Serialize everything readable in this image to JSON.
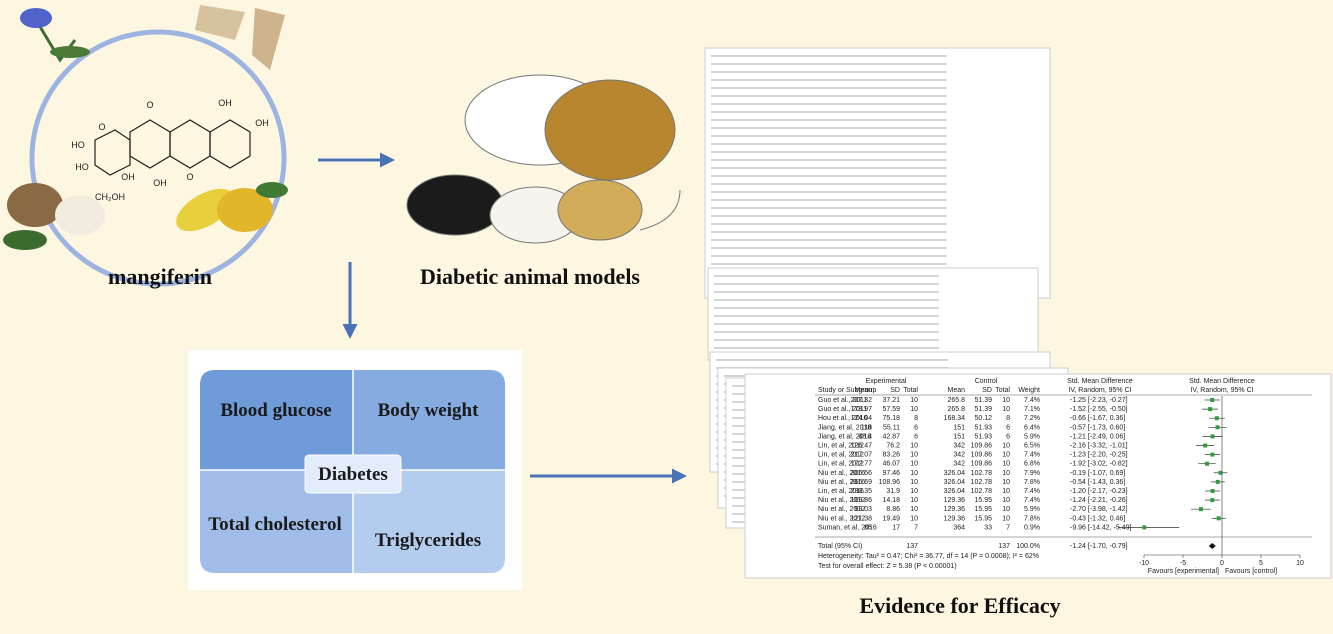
{
  "labels": {
    "compound": "mangiferin",
    "animals": "Diabetic animal models",
    "evidence": "Evidence for Efficacy"
  },
  "molecule": [
    "O",
    "HO",
    "HO",
    "OH",
    "CH₂OH",
    "OH",
    "O",
    "OH",
    "OH",
    "O"
  ],
  "diabetes": {
    "center": "Diabetes",
    "top_left": "Blood glucose",
    "top_right": "Body weight",
    "bottom_left": "Total cholesterol",
    "bottom_right": "Triglycerides"
  },
  "forest": {
    "header": {
      "experimental": "Experimental",
      "control": "Control",
      "smd": "Std. Mean Difference",
      "smd_plot": "Std. Mean Difference"
    },
    "columns": [
      "Study or Subgroup",
      "Mean",
      "SD",
      "Total",
      "Mean",
      "SD",
      "Total",
      "Weight",
      "IV, Random, 95% CI",
      "IV, Random, 95% CI"
    ],
    "rows": [
      {
        "study": "Guo et al., 2011",
        "exp_mean": 207.32,
        "exp_sd": 37.21,
        "exp_total": 10,
        "ctl_mean": 265.8,
        "ctl_sd": 51.39,
        "ctl_total": 10,
        "weight": "7.4%",
        "ci": "-1.25 [-2.23, -0.27]",
        "smd": -1.25,
        "lo": -2.23,
        "hi": -0.27
      },
      {
        "study": "Guo et al., 2011",
        "exp_mean": 178.97,
        "exp_sd": 57.59,
        "exp_total": 10,
        "ctl_mean": 265.8,
        "ctl_sd": 51.39,
        "ctl_total": 10,
        "weight": "7.1%",
        "ci": "-1.52 [-2.55, -0.50]",
        "smd": -1.52,
        "lo": -2.55,
        "hi": -0.5
      },
      {
        "study": "Hou et al., 2016",
        "exp_mean": 124.04,
        "exp_sd": 75.18,
        "exp_total": 8,
        "ctl_mean": 168.34,
        "ctl_sd": 50.12,
        "ctl_total": 8,
        "weight": "7.2%",
        "ci": "-0.66 [-1.67, 0.36]",
        "smd": -0.66,
        "lo": -1.67,
        "hi": 0.36
      },
      {
        "study": "Jiang, et al, 2018",
        "exp_mean": 118,
        "exp_sd": 55.11,
        "exp_total": 6,
        "ctl_mean": 151,
        "ctl_sd": 51.93,
        "ctl_total": 6,
        "weight": "6.4%",
        "ci": "-0.57 [-1.73, 0.60]",
        "smd": -0.57,
        "lo": -1.73,
        "hi": 0.6
      },
      {
        "study": "Jiang, et al, 2018",
        "exp_mean": 88.4,
        "exp_sd": 42.87,
        "exp_total": 6,
        "ctl_mean": 151,
        "ctl_sd": 51.93,
        "ctl_total": 6,
        "weight": "5.9%",
        "ci": "-1.21 [-2.49, 0.06]",
        "smd": -1.21,
        "lo": -2.49,
        "hi": 0.06
      },
      {
        "study": "Lin, et al, 2012",
        "exp_mean": 126.47,
        "exp_sd": 76.2,
        "exp_total": 10,
        "ctl_mean": 342,
        "ctl_sd": 109.86,
        "ctl_total": 10,
        "weight": "6.5%",
        "ci": "-2.16 [-3.32, -1.01]",
        "smd": -2.16,
        "lo": -3.32,
        "hi": -1.01
      },
      {
        "study": "Lin, et al, 2012",
        "exp_mean": 217.07,
        "exp_sd": 83.26,
        "exp_total": 10,
        "ctl_mean": 342,
        "ctl_sd": 109.86,
        "ctl_total": 10,
        "weight": "7.4%",
        "ci": "-1.23 [-2.20, -0.25]",
        "smd": -1.23,
        "lo": -2.2,
        "hi": -0.25
      },
      {
        "study": "Lin, et al, 2012",
        "exp_mean": 172.77,
        "exp_sd": 46.07,
        "exp_total": 10,
        "ctl_mean": 342,
        "ctl_sd": 109.86,
        "ctl_total": 10,
        "weight": "6.8%",
        "ci": "-1.92 [-3.02, -0.82]",
        "smd": -1.92,
        "lo": -3.02,
        "hi": -0.82
      },
      {
        "study": "Niu et al., 2016",
        "exp_mean": 306.56,
        "exp_sd": 97.46,
        "exp_total": 10,
        "ctl_mean": 326.04,
        "ctl_sd": 102.78,
        "ctl_total": 10,
        "weight": "7.9%",
        "ci": "-0.19 [-1.07, 0.69]",
        "smd": -0.19,
        "lo": -1.07,
        "hi": 0.69
      },
      {
        "study": "Niu et al., 2016",
        "exp_mean": 266.69,
        "exp_sd": 108.96,
        "exp_total": 10,
        "ctl_mean": 326.04,
        "ctl_sd": 102.78,
        "ctl_total": 10,
        "weight": "7.8%",
        "ci": "-0.54 [-1.43, 0.36]",
        "smd": -0.54,
        "lo": -1.43,
        "hi": 0.36
      },
      {
        "study": "Lin, et al, 2016",
        "exp_mean": 230.35,
        "exp_sd": 31.9,
        "exp_total": 10,
        "ctl_mean": 326.04,
        "ctl_sd": 102.78,
        "ctl_total": 10,
        "weight": "7.4%",
        "ci": "-1.20 [-2.17, -0.23]",
        "smd": -1.2,
        "lo": -2.17,
        "hi": -0.23
      },
      {
        "study": "Niu et al., 2012",
        "exp_mean": 109.86,
        "exp_sd": 14.18,
        "exp_total": 10,
        "ctl_mean": 129.36,
        "ctl_sd": 15.95,
        "ctl_total": 10,
        "weight": "7.4%",
        "ci": "-1.24 [-2.21, -0.26]",
        "smd": -1.24,
        "lo": -2.21,
        "hi": -0.26
      },
      {
        "study": "Niu et al., 2012",
        "exp_mean": 93.03,
        "exp_sd": 8.86,
        "exp_total": 10,
        "ctl_mean": 129.36,
        "ctl_sd": 15.95,
        "ctl_total": 10,
        "weight": "5.9%",
        "ci": "-2.70 [-3.98, -1.42]",
        "smd": -2.7,
        "lo": -3.98,
        "hi": -1.42
      },
      {
        "study": "Niu et al., 2012",
        "exp_mean": 121.38,
        "exp_sd": 19.49,
        "exp_total": 10,
        "ctl_mean": 129.36,
        "ctl_sd": 15.95,
        "ctl_total": 10,
        "weight": "7.8%",
        "ci": "-0.43 [-1.32, 0.46]",
        "smd": -0.43,
        "lo": -1.32,
        "hi": 0.46
      },
      {
        "study": "Suman, et al, 2016",
        "exp_mean": 85,
        "exp_sd": 17,
        "exp_total": 7,
        "ctl_mean": 364,
        "ctl_sd": 33,
        "ctl_total": 7,
        "weight": "0.9%",
        "ci": "-9.96 [-14.42, -5.49]",
        "smd": -9.96,
        "lo": -14.42,
        "hi": -5.49
      }
    ],
    "total": {
      "study": "Total (95% CI)",
      "exp_total": 137,
      "ctl_total": 137,
      "weight": "100.0%",
      "ci": "-1.24 [-1.70, -0.79]",
      "smd": -1.24,
      "lo": -1.7,
      "hi": -0.79
    },
    "heterogeneity": "Heterogeneity: Tau² = 0.47; Chi² = 36.77, df = 14 (P = 0.0008); I² = 62%",
    "overall_effect": "Test for overall effect: Z = 5.38 (P < 0.00001)",
    "xlim": [
      -10,
      10
    ],
    "xticks": [
      -10,
      -5,
      0,
      5,
      10
    ],
    "favours_left": "Favours [experimental]",
    "favours_right": "Favours [control]"
  }
}
